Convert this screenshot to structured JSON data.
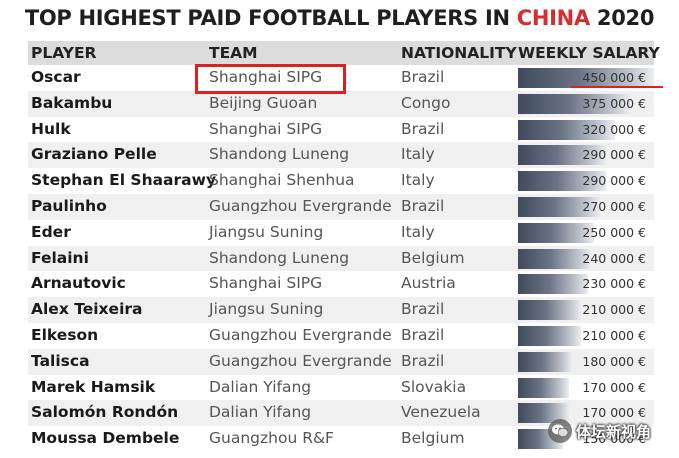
{
  "title": {
    "prefix": "TOP HIGHEST PAID FOOTBALL PLAYERS IN ",
    "accent": "CHINA",
    "suffix": " 2020",
    "accent_color": "#d32f2f"
  },
  "headers": {
    "player": "PLAYER",
    "team": "TEAM",
    "nationality": "NATIONALITY",
    "salary": "WEEKLY SALARY"
  },
  "watermark": {
    "text": "体坛新视角",
    "icon": "wechat-icon"
  },
  "highlight_color": "#e0201f",
  "chart_data": {
    "type": "table",
    "title": "TOP HIGHEST PAID FOOTBALL PLAYERS IN CHINA 2020",
    "columns": [
      "PLAYER",
      "TEAM",
      "NATIONALITY",
      "WEEKLY SALARY"
    ],
    "salary_max": 450000,
    "rows": [
      {
        "player": "Oscar",
        "team": "Shanghai SIPG",
        "nationality": "Brazil",
        "salary": 450000,
        "salary_label": "450 000 €"
      },
      {
        "player": "Bakambu",
        "team": "Beijing Guoan",
        "nationality": "Congo",
        "salary": 375000,
        "salary_label": "375 000 €"
      },
      {
        "player": "Hulk",
        "team": "Shanghai SIPG",
        "nationality": "Brazil",
        "salary": 320000,
        "salary_label": "320 000 €"
      },
      {
        "player": "Graziano Pelle",
        "team": "Shandong Luneng",
        "nationality": "Italy",
        "salary": 290000,
        "salary_label": "290 000 €"
      },
      {
        "player": "Stephan El Shaarawy",
        "team": "Shanghai Shenhua",
        "nationality": "Italy",
        "salary": 290000,
        "salary_label": "290 000 €"
      },
      {
        "player": "Paulinho",
        "team": "Guangzhou Evergrande",
        "nationality": "Brazil",
        "salary": 270000,
        "salary_label": "270 000 €"
      },
      {
        "player": "Eder",
        "team": "Jiangsu Suning",
        "nationality": "Italy",
        "salary": 250000,
        "salary_label": "250 000 €"
      },
      {
        "player": "Felaini",
        "team": "Shandong Luneng",
        "nationality": "Belgium",
        "salary": 240000,
        "salary_label": "240 000 €"
      },
      {
        "player": "Arnautovic",
        "team": "Shanghai SIPG",
        "nationality": "Austria",
        "salary": 230000,
        "salary_label": "230 000 €"
      },
      {
        "player": "Alex Teixeira",
        "team": "Jiangsu Suning",
        "nationality": "Brazil",
        "salary": 210000,
        "salary_label": "210 000 €"
      },
      {
        "player": "Elkeson",
        "team": "Guangzhou Evergrande",
        "nationality": "Brazil",
        "salary": 210000,
        "salary_label": "210 000 €"
      },
      {
        "player": "Talisca",
        "team": "Guangzhou Evergrande",
        "nationality": "Brazil",
        "salary": 180000,
        "salary_label": "180 000 €"
      },
      {
        "player": "Marek Hamsik",
        "team": "Dalian Yifang",
        "nationality": "Slovakia",
        "salary": 170000,
        "salary_label": "170 000 €"
      },
      {
        "player": "Salomón Rondón",
        "team": "Dalian Yifang",
        "nationality": "Venezuela",
        "salary": 170000,
        "salary_label": "170 000 €"
      },
      {
        "player": "Moussa Dembele",
        "team": "Guangzhou R&F",
        "nationality": "Belgium",
        "salary": 150000,
        "salary_label": "150 000 €"
      }
    ]
  }
}
